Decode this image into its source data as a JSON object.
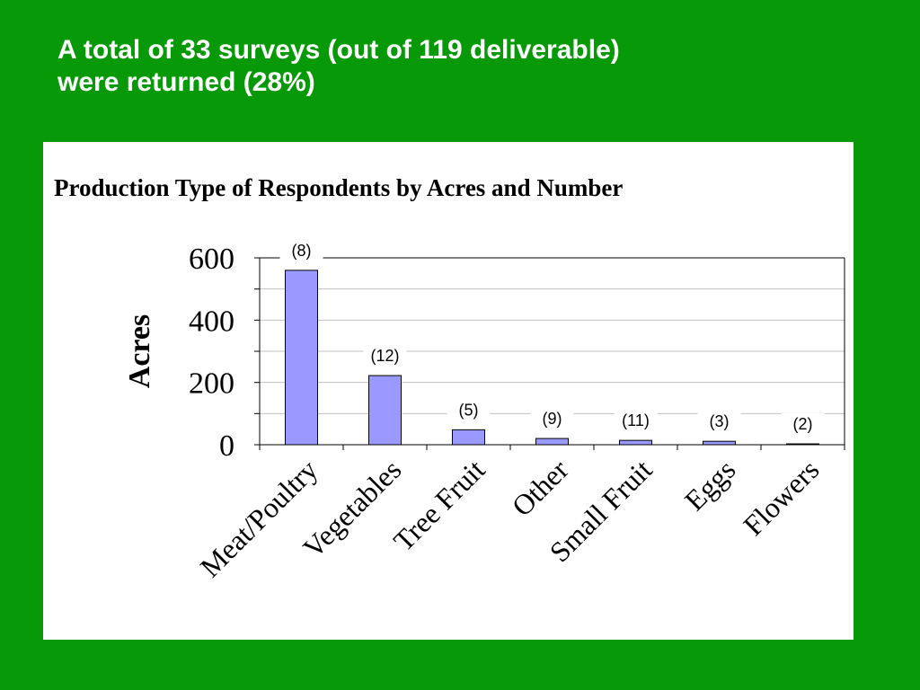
{
  "slide": {
    "title_line1": "A total of 33 surveys (out of 119 deliverable)",
    "title_line2": "were returned (28%)"
  },
  "colors": {
    "background": "#079907",
    "panel": "#ffffff",
    "bar_fill": "#9999ff",
    "bar_stroke": "#000000",
    "grid": "#c0c0c0"
  },
  "chart_data": {
    "type": "bar",
    "title": "Production Type of Respondents by Acres and Number",
    "xlabel": "",
    "ylabel": "Acres",
    "categories": [
      "Meat/Poultry",
      "Vegetables",
      "Tree Fruit",
      "Other",
      "Small Fruit",
      "Eggs",
      "Flowers"
    ],
    "values": [
      560,
      222,
      48,
      20,
      14,
      11,
      1
    ],
    "data_labels": [
      "(8)",
      "(12)",
      "(5)",
      "(9)",
      "(11)",
      "(3)",
      "(2)"
    ],
    "ylim": [
      0,
      600
    ],
    "yticks": [
      "0",
      "200",
      "400",
      "600"
    ],
    "grid": true,
    "legend": "none"
  }
}
